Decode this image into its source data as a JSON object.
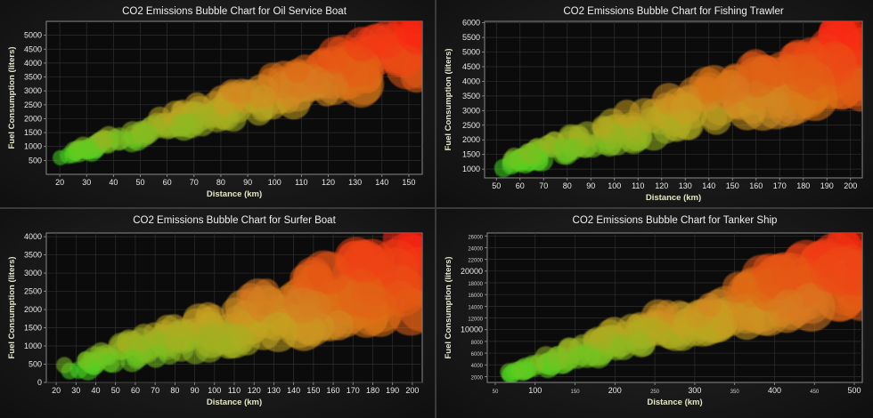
{
  "chart_data": [
    {
      "type": "scatter",
      "title": "CO2 Emissions Bubble Chart for Oil Service Boat",
      "xlabel": "Distance (km)",
      "ylabel": "Fuel Consumption (liters)",
      "xlim": [
        15,
        155
      ],
      "ylim": [
        0,
        5500
      ],
      "xticks": [
        20,
        30,
        40,
        50,
        60,
        70,
        80,
        90,
        100,
        110,
        120,
        130,
        140,
        150
      ],
      "yticks": [
        500,
        1000,
        1500,
        2000,
        2500,
        3000,
        3500,
        4000,
        4500,
        5000
      ],
      "small_tick_labels": false,
      "colors": {
        "low": "#33dd22",
        "mid": "#c8a022",
        "high": "#ff1a0a"
      },
      "trend": {
        "x_start": 20,
        "x_end": 155,
        "lower_start": 560,
        "lower_end": 3500,
        "upper_start": 720,
        "upper_end": 5500
      },
      "size_range": [
        5,
        26
      ],
      "count": 190,
      "seed": 11
    },
    {
      "type": "scatter",
      "title": "CO2 Emissions Bubble Chart for Fishing Trawler",
      "xlabel": "Distance (km)",
      "ylabel": "Fuel Consumption (liters)",
      "xlim": [
        45,
        205
      ],
      "ylim": [
        700,
        6050
      ],
      "xticks": [
        50,
        60,
        70,
        80,
        90,
        100,
        110,
        120,
        130,
        140,
        150,
        160,
        170,
        180,
        190,
        200
      ],
      "yticks": [
        1000,
        1500,
        2000,
        2500,
        3000,
        3500,
        4000,
        4500,
        5000,
        5500,
        6000
      ],
      "small_tick_labels": false,
      "colors": {
        "low": "#33dd22",
        "mid": "#c8a022",
        "high": "#ff1a0a"
      },
      "trend": {
        "x_start": 50,
        "x_end": 205,
        "lower_start": 950,
        "lower_end": 3700,
        "upper_start": 1200,
        "upper_end": 6050
      },
      "size_range": [
        6,
        28
      ],
      "count": 190,
      "seed": 23
    },
    {
      "type": "scatter",
      "title": "CO2 Emissions Bubble Chart for Surfer Boat",
      "xlabel": "Distance (km)",
      "ylabel": "Fuel Consumption (liters)",
      "xlim": [
        15,
        205
      ],
      "ylim": [
        0,
        4100
      ],
      "xticks": [
        20,
        30,
        40,
        50,
        60,
        70,
        80,
        90,
        100,
        110,
        120,
        130,
        140,
        150,
        160,
        170,
        180,
        190,
        200
      ],
      "yticks": [
        0,
        500,
        1000,
        1500,
        2000,
        2500,
        3000,
        3500,
        4000
      ],
      "small_tick_labels": false,
      "colors": {
        "low": "#33dd22",
        "mid": "#c8a022",
        "high": "#ff1a0a"
      },
      "trend": {
        "x_start": 20,
        "x_end": 205,
        "lower_start": 220,
        "lower_end": 1900,
        "upper_start": 420,
        "upper_end": 4100
      },
      "size_range": [
        5,
        30
      ],
      "count": 200,
      "seed": 37
    },
    {
      "type": "scatter",
      "title": "CO2 Emissions Bubble Chart for Tanker Ship",
      "xlabel": "Distance (km)",
      "ylabel": "Fuel Consumption (liters)",
      "xlim": [
        40,
        510
      ],
      "ylim": [
        1000,
        26500
      ],
      "xticks": [
        50,
        100,
        150,
        200,
        250,
        300,
        350,
        400,
        450,
        500
      ],
      "xtick_major": [
        100,
        200,
        300,
        400,
        500
      ],
      "yticks": [
        2000,
        4000,
        6000,
        8000,
        10000,
        12000,
        14000,
        16000,
        18000,
        20000,
        22000,
        24000,
        26000
      ],
      "ytick_major": [
        10000,
        20000
      ],
      "small_tick_labels": true,
      "colors": {
        "low": "#33dd22",
        "mid": "#c8a022",
        "high": "#ff1a0a"
      },
      "trend": {
        "x_start": 60,
        "x_end": 510,
        "lower_start": 1900,
        "lower_end": 15500,
        "upper_start": 2600,
        "upper_end": 26500
      },
      "size_range": [
        5,
        30
      ],
      "count": 200,
      "seed": 53
    }
  ]
}
